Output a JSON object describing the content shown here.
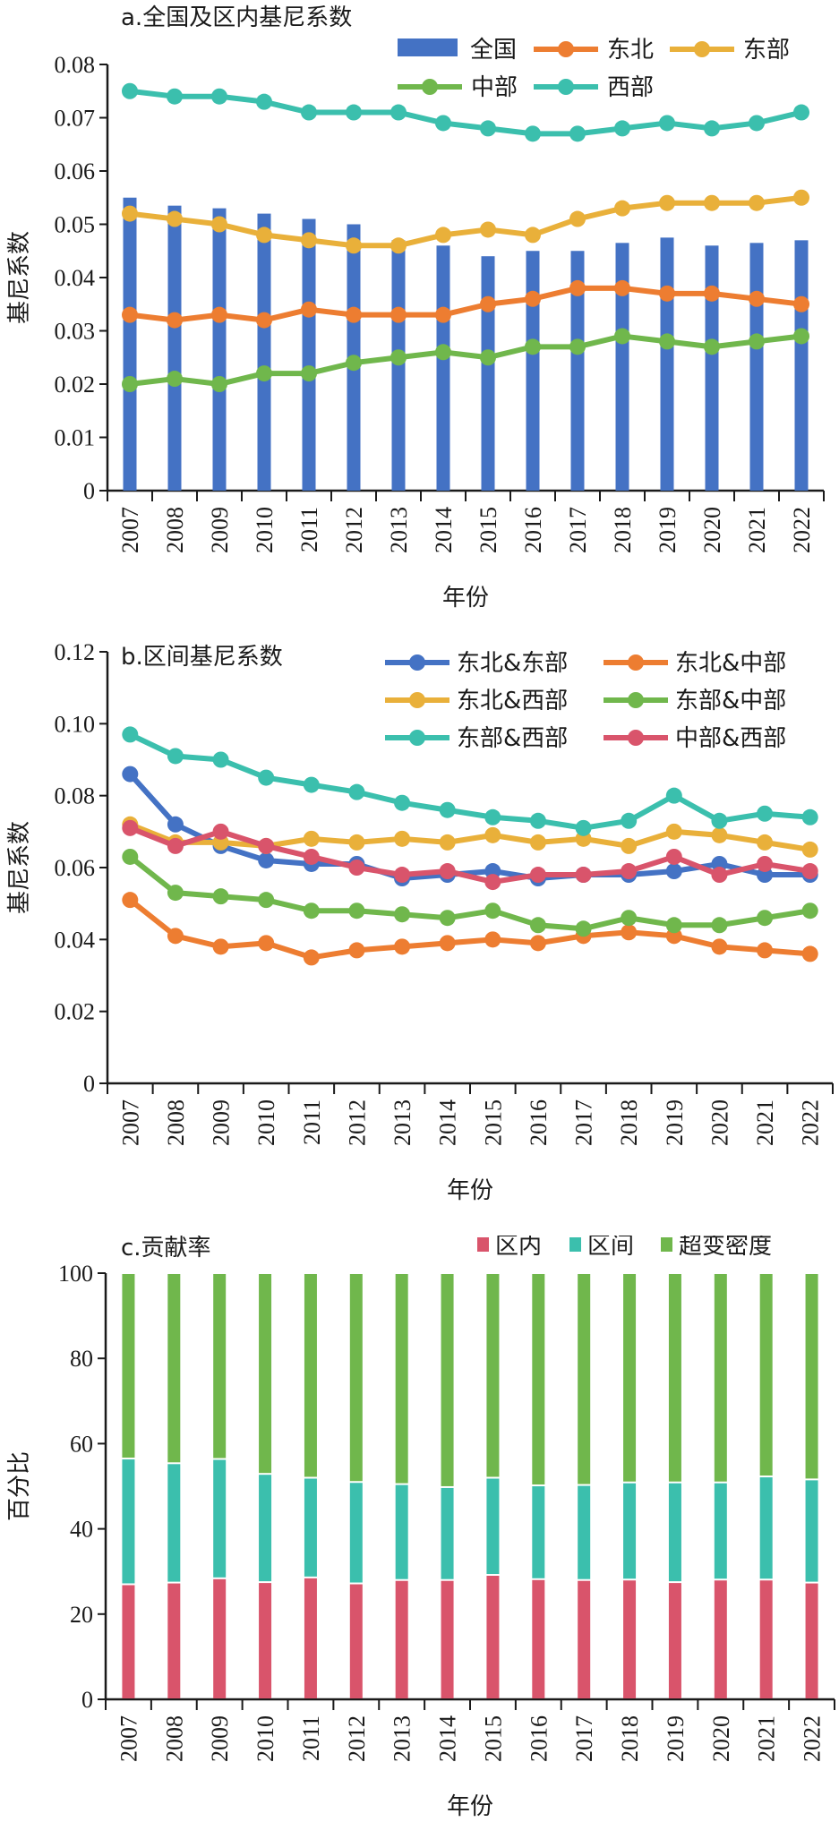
{
  "chart_data": [
    {
      "type": "bar+line",
      "title": "a.全国及区内基尼系数",
      "xlabel": "年份",
      "ylabel": "基尼系数",
      "ylim": [
        0,
        0.08
      ],
      "yticks": [
        "0",
        "0.01",
        "0.02",
        "0.03",
        "0.04",
        "0.05",
        "0.06",
        "0.07",
        "0.08"
      ],
      "categories": [
        "2007",
        "2008",
        "2009",
        "2010",
        "2011",
        "2012",
        "2013",
        "2014",
        "2015",
        "2016",
        "2017",
        "2018",
        "2019",
        "2020",
        "2021",
        "2022"
      ],
      "legend_position": "top-right",
      "bar_series": {
        "name": "全国",
        "color": "#4472c4",
        "values": [
          0.055,
          0.0535,
          0.053,
          0.052,
          0.051,
          0.05,
          0.047,
          0.046,
          0.044,
          0.045,
          0.045,
          0.0465,
          0.0475,
          0.046,
          0.0465,
          0.047
        ]
      },
      "series": [
        {
          "name": "东北",
          "color": "#ed7d31",
          "values": [
            0.033,
            0.032,
            0.033,
            0.032,
            0.034,
            0.033,
            0.033,
            0.033,
            0.035,
            0.036,
            0.038,
            0.038,
            0.037,
            0.037,
            0.036,
            0.035
          ]
        },
        {
          "name": "东部",
          "color": "#e9b03a",
          "values": [
            0.052,
            0.051,
            0.05,
            0.048,
            0.047,
            0.046,
            0.046,
            0.048,
            0.049,
            0.048,
            0.051,
            0.053,
            0.054,
            0.054,
            0.054,
            0.055
          ]
        },
        {
          "name": "中部",
          "color": "#70b74c",
          "values": [
            0.02,
            0.021,
            0.02,
            0.022,
            0.022,
            0.024,
            0.025,
            0.026,
            0.025,
            0.027,
            0.027,
            0.029,
            0.028,
            0.027,
            0.028,
            0.029
          ]
        },
        {
          "name": "西部",
          "color": "#3bbfad",
          "values": [
            0.075,
            0.074,
            0.074,
            0.073,
            0.071,
            0.071,
            0.071,
            0.069,
            0.068,
            0.067,
            0.067,
            0.068,
            0.069,
            0.068,
            0.069,
            0.071
          ]
        }
      ]
    },
    {
      "type": "line",
      "title": "b.区间基尼系数",
      "xlabel": "年份",
      "ylabel": "基尼系数",
      "ylim": [
        0,
        0.12
      ],
      "yticks": [
        "0",
        "0.02",
        "0.04",
        "0.06",
        "0.08",
        "0.10",
        "0.12"
      ],
      "categories": [
        "2007",
        "2008",
        "2009",
        "2010",
        "2011",
        "2012",
        "2013",
        "2014",
        "2015",
        "2016",
        "2017",
        "2018",
        "2019",
        "2020",
        "2021",
        "2022"
      ],
      "legend_position": "top-right",
      "series": [
        {
          "name": "东北&东部",
          "color": "#4472c4",
          "values": [
            0.086,
            0.072,
            0.066,
            0.062,
            0.061,
            0.061,
            0.057,
            0.058,
            0.059,
            0.057,
            0.058,
            0.058,
            0.059,
            0.061,
            0.058,
            0.058
          ]
        },
        {
          "name": "东北&中部",
          "color": "#ed7d31",
          "values": [
            0.051,
            0.041,
            0.038,
            0.039,
            0.035,
            0.037,
            0.038,
            0.039,
            0.04,
            0.039,
            0.041,
            0.042,
            0.041,
            0.038,
            0.037,
            0.036
          ]
        },
        {
          "name": "东北&西部",
          "color": "#e9b03a",
          "values": [
            0.072,
            0.067,
            0.067,
            0.066,
            0.068,
            0.067,
            0.068,
            0.067,
            0.069,
            0.067,
            0.068,
            0.066,
            0.07,
            0.069,
            0.067,
            0.065
          ]
        },
        {
          "name": "东部&中部",
          "color": "#70b74c",
          "values": [
            0.063,
            0.053,
            0.052,
            0.051,
            0.048,
            0.048,
            0.047,
            0.046,
            0.048,
            0.044,
            0.043,
            0.046,
            0.044,
            0.044,
            0.046,
            0.048
          ]
        },
        {
          "name": "东部&西部",
          "color": "#3bbfad",
          "values": [
            0.097,
            0.091,
            0.09,
            0.085,
            0.083,
            0.081,
            0.078,
            0.076,
            0.074,
            0.073,
            0.071,
            0.073,
            0.08,
            0.073,
            0.075,
            0.074
          ]
        },
        {
          "name": "中部&西部",
          "color": "#d9546b",
          "values": [
            0.071,
            0.066,
            0.07,
            0.066,
            0.063,
            0.06,
            0.058,
            0.059,
            0.056,
            0.058,
            0.058,
            0.059,
            0.063,
            0.058,
            0.061,
            0.059
          ]
        }
      ]
    },
    {
      "type": "stacked-bar",
      "title": "c.贡献率",
      "xlabel": "年份",
      "ylabel": "百分比",
      "ylim": [
        0,
        100
      ],
      "yticks": [
        "0",
        "20",
        "40",
        "60",
        "80",
        "100"
      ],
      "categories": [
        "2007",
        "2008",
        "2009",
        "2010",
        "2011",
        "2012",
        "2013",
        "2014",
        "2015",
        "2016",
        "2017",
        "2018",
        "2019",
        "2020",
        "2021",
        "2022"
      ],
      "legend_position": "top-right",
      "series": [
        {
          "name": "区内",
          "color": "#d9546b",
          "values": [
            27.0,
            27.4,
            28.4,
            27.5,
            28.6,
            27.2,
            28.0,
            28.0,
            29.2,
            28.2,
            28.0,
            28.1,
            27.5,
            28.1,
            28.1,
            27.4
          ]
        },
        {
          "name": "区间",
          "color": "#3bbfad",
          "values": [
            29.5,
            28.0,
            28.0,
            25.4,
            23.4,
            23.8,
            22.5,
            21.8,
            22.8,
            22.0,
            22.3,
            22.8,
            23.4,
            22.8,
            24.2,
            24.2
          ]
        },
        {
          "name": "超变密度",
          "color": "#70b74c",
          "values": [
            43.5,
            44.6,
            43.6,
            47.1,
            48.0,
            49.0,
            49.5,
            50.2,
            48.0,
            49.8,
            49.7,
            49.1,
            49.1,
            49.1,
            47.7,
            48.4
          ]
        }
      ]
    }
  ]
}
